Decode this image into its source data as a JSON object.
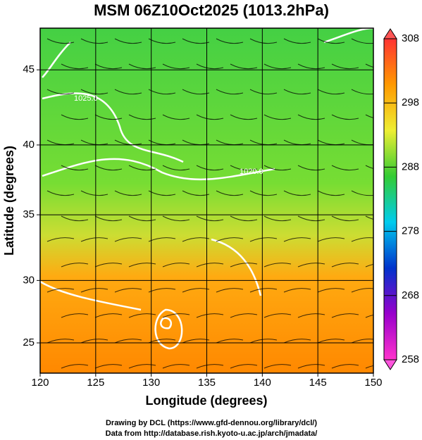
{
  "chart_data": {
    "type": "field-map",
    "title": "MSM 06Z10Oct2025 (1013.2hPa)",
    "xlabel": "Longitude (degrees)",
    "ylabel": "Latitude  (degrees)",
    "xlim": [
      120,
      150
    ],
    "ylim": [
      22.5,
      47.6
    ],
    "xticks": [
      120,
      125,
      130,
      135,
      140,
      145,
      150
    ],
    "yticks": [
      25,
      30,
      35,
      40,
      45
    ],
    "yscale": "mercator",
    "grid": true,
    "contour_labels": [
      "1025.0",
      "1020.0"
    ],
    "colorbar": {
      "lim": [
        258,
        308
      ],
      "ticks": [
        258,
        268,
        278,
        288,
        298,
        308
      ],
      "colors": [
        "#ff33cc",
        "#9900cc",
        "#0033cc",
        "#00ccee",
        "#33cc33",
        "#eeee33",
        "#ff9900",
        "#ff3333"
      ]
    },
    "footer": [
      "Drawing by DCL (https://www.gfd-dennou.org/library/dcl/)",
      "Data from http://database.rish.kyoto-u.ac.jp/arch/jmadata/"
    ]
  }
}
